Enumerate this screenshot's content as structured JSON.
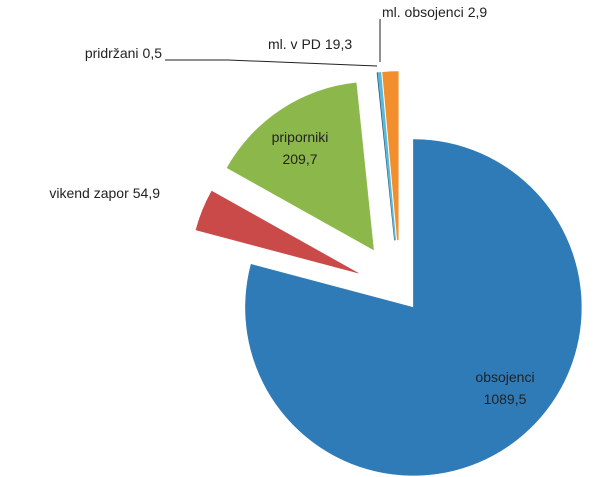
{
  "chart_data": {
    "type": "pie",
    "categories": [
      "obsojenci",
      "vikend zapor",
      "priporniki",
      "pridržani",
      "ml. obsojenci",
      "ml. v PD"
    ],
    "values": [
      1089.5,
      54.9,
      209.7,
      0.5,
      2.9,
      19.3
    ],
    "value_labels": [
      "1089,5",
      "54,9",
      "209,7",
      "0,5",
      "2,9",
      "19,3"
    ],
    "colors": [
      "#2e7bb8",
      "#c94a48",
      "#8cb84b",
      "#2a4d7a",
      "#5bb8d6",
      "#f28e2b"
    ]
  }
}
